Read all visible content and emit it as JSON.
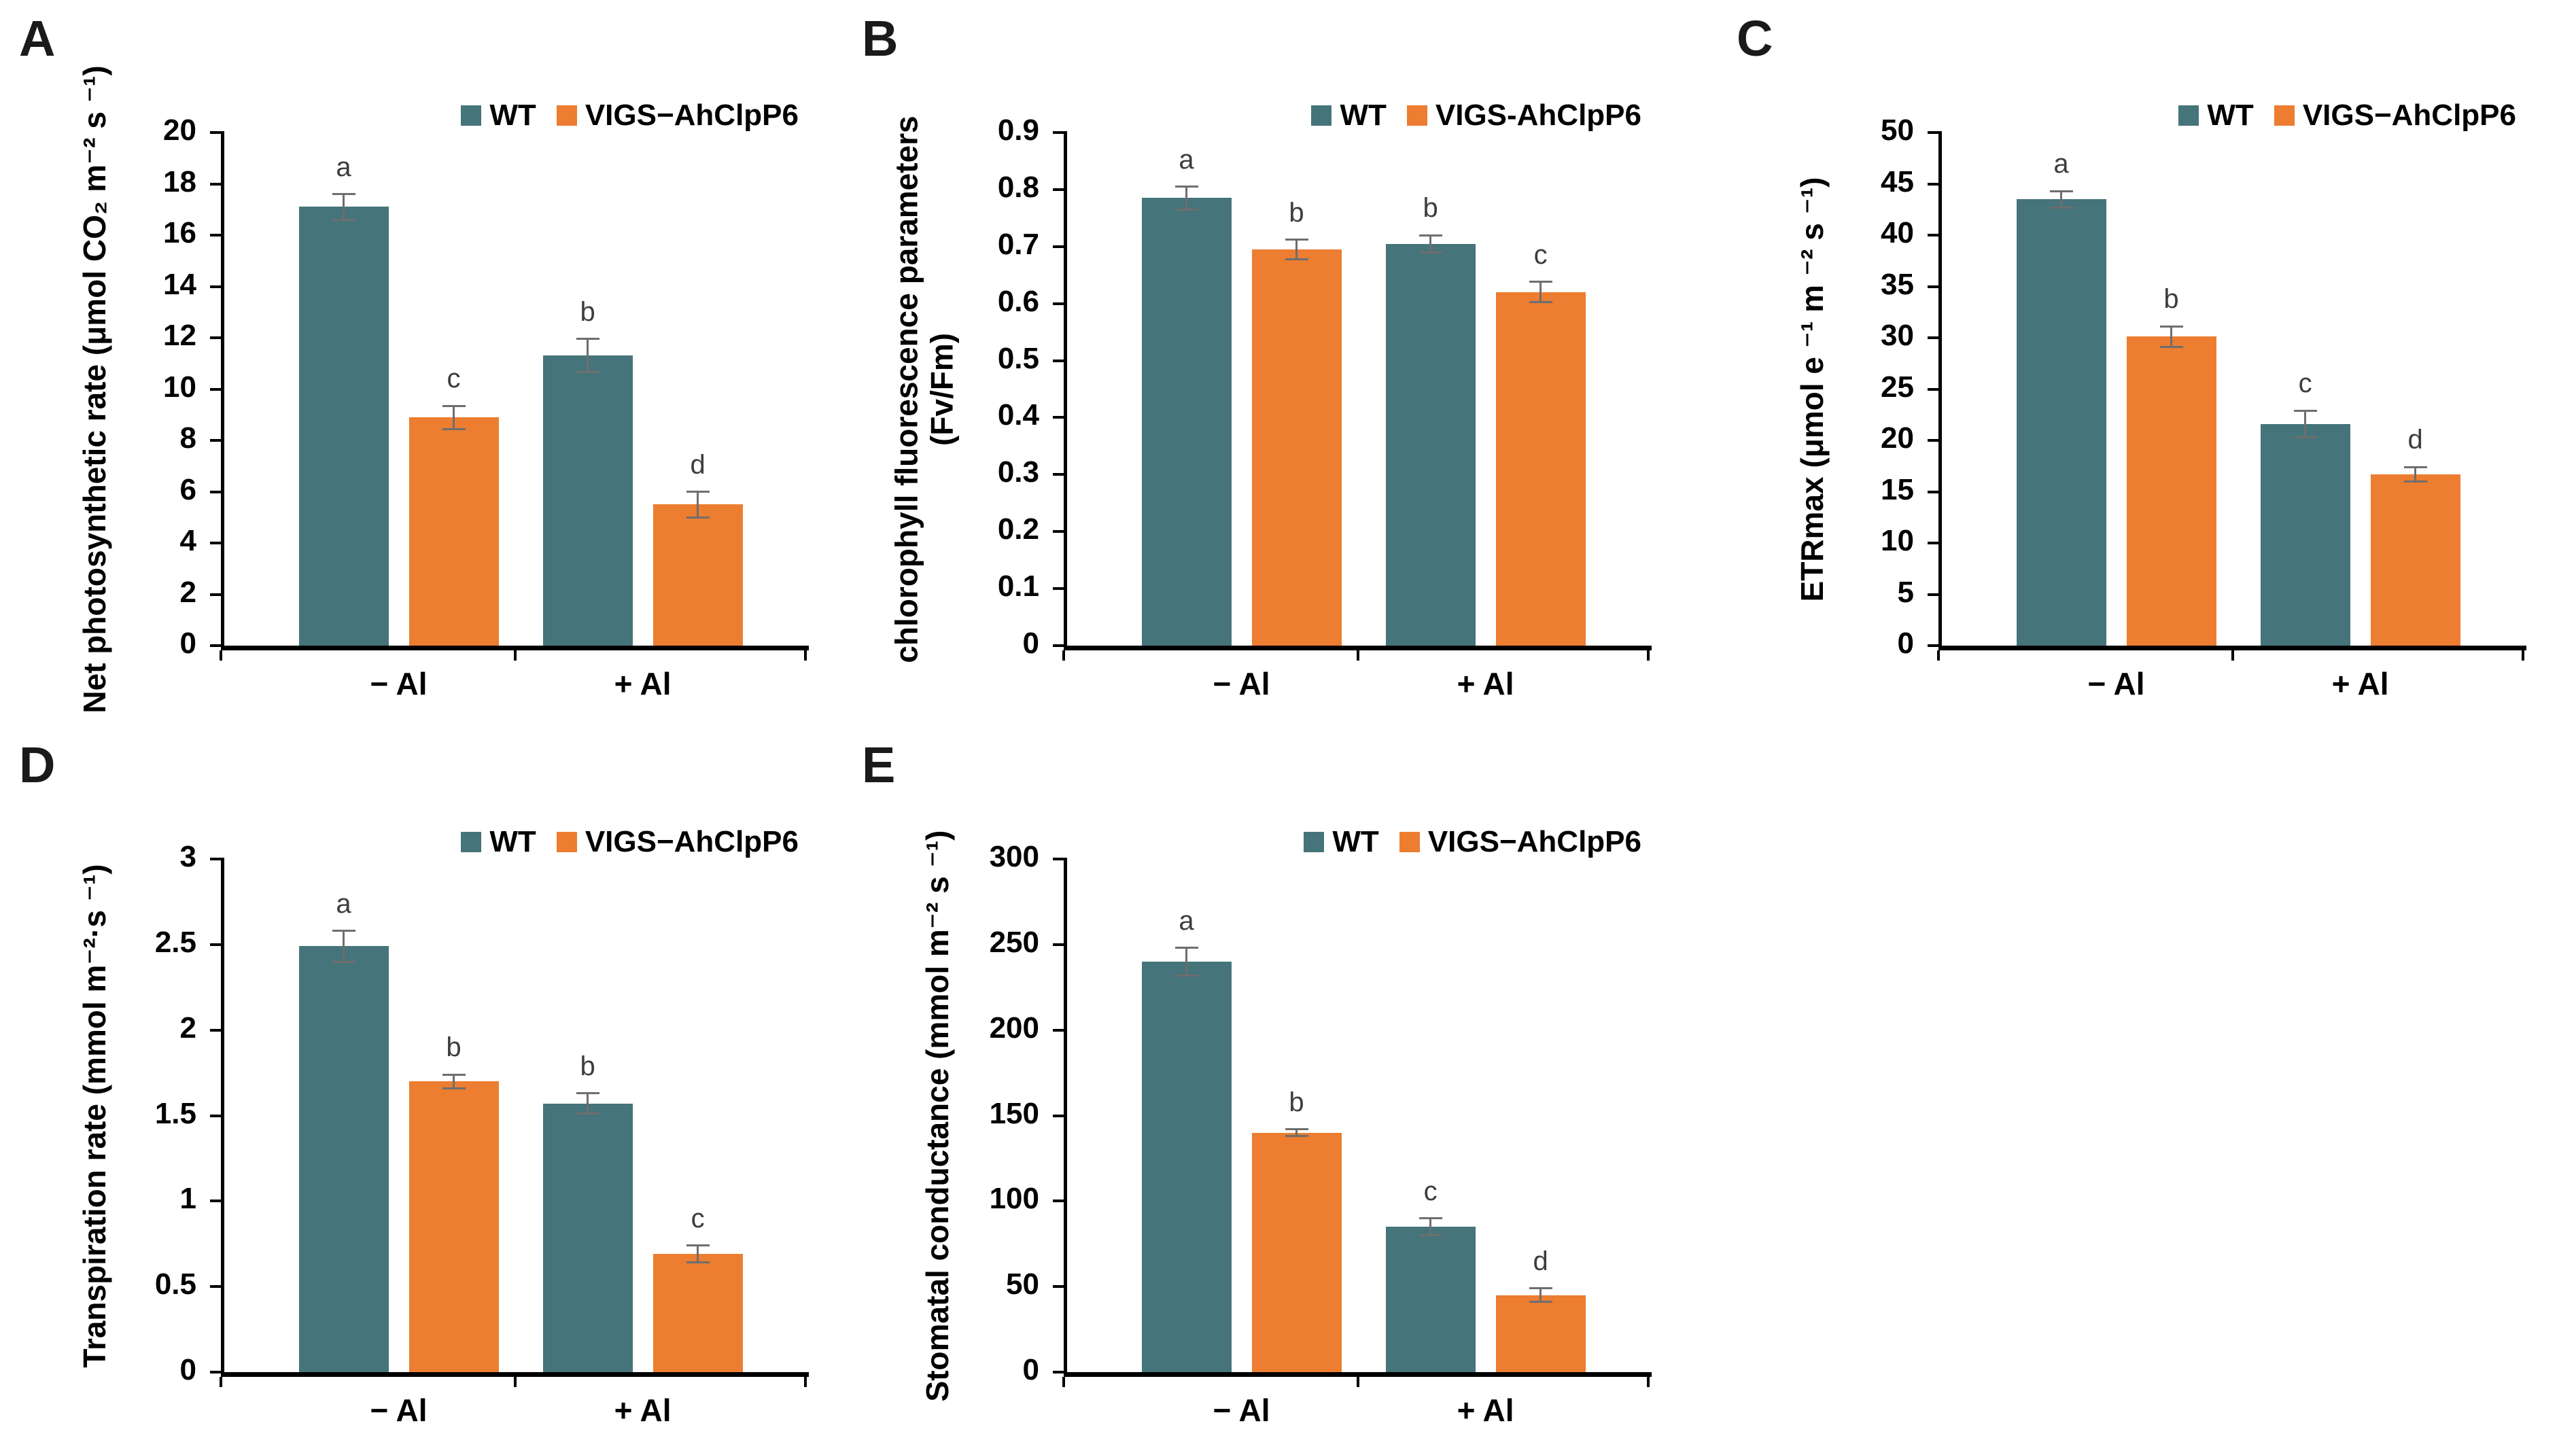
{
  "figure": {
    "background": "#ffffff",
    "series_colors": {
      "wt": "#45747A",
      "vigs": "#EC7D31"
    },
    "error_bar_color": "#6e6e6e",
    "axis_color": "#000000"
  },
  "chart_data": [
    {
      "panel_label": "A",
      "type": "bar",
      "title": "",
      "ylabel": "Net photosynthetic rate (μmol CO₂ m⁻² s ⁻¹)",
      "ylabel_line2": "",
      "xlabel": "",
      "categories": [
        "− Al",
        "+ Al"
      ],
      "legend": [
        "WT",
        "VIGS−AhClpP6"
      ],
      "legend_position": "top-right",
      "grid": false,
      "ylim": [
        0,
        20
      ],
      "yticks": [
        "0",
        "2",
        "4",
        "6",
        "8",
        "10",
        "12",
        "14",
        "16",
        "18",
        "20"
      ],
      "series": [
        {
          "name": "WT",
          "values": [
            17.1,
            11.3
          ],
          "errors": [
            0.5,
            0.65
          ],
          "letters": [
            "a",
            "b"
          ]
        },
        {
          "name": "VIGS-AhClpP6",
          "values": [
            8.9,
            5.5
          ],
          "errors": [
            0.45,
            0.5
          ],
          "letters": [
            "c",
            "d"
          ]
        }
      ]
    },
    {
      "panel_label": "B",
      "type": "bar",
      "title": "",
      "ylabel": "chlorophyll fluorescence parameters",
      "ylabel_line2": "(Fv/Fm)",
      "xlabel": "",
      "categories": [
        "− Al",
        "+ Al"
      ],
      "legend": [
        "WT",
        "VIGS-AhClpP6"
      ],
      "legend_position": "top-right",
      "grid": false,
      "ylim": [
        0,
        0.9
      ],
      "yticks": [
        "0",
        "0.1",
        "0.2",
        "0.3",
        "0.4",
        "0.5",
        "0.6",
        "0.7",
        "0.8",
        "0.9"
      ],
      "series": [
        {
          "name": "WT",
          "values": [
            0.785,
            0.705
          ],
          "errors": [
            0.02,
            0.015
          ],
          "letters": [
            "a",
            "b"
          ]
        },
        {
          "name": "VIGS-AhClpP6",
          "values": [
            0.695,
            0.62
          ],
          "errors": [
            0.017,
            0.018
          ],
          "letters": [
            "b",
            "c"
          ]
        }
      ]
    },
    {
      "panel_label": "C",
      "type": "bar",
      "title": "",
      "ylabel": "ETRmax (μmol e ⁻¹ m ⁻² s ⁻¹)",
      "ylabel_line2": "",
      "xlabel": "",
      "categories": [
        "− Al",
        "+ Al"
      ],
      "legend": [
        "WT",
        "VIGS−AhClpP6"
      ],
      "legend_position": "top-right",
      "grid": false,
      "ylim": [
        0,
        50
      ],
      "yticks": [
        "0",
        "5",
        "10",
        "15",
        "20",
        "25",
        "30",
        "35",
        "40",
        "45",
        "50"
      ],
      "series": [
        {
          "name": "WT",
          "values": [
            43.5,
            21.6
          ],
          "errors": [
            0.8,
            1.3
          ],
          "letters": [
            "a",
            "c"
          ]
        },
        {
          "name": "VIGS-AhClpP6",
          "values": [
            30.1,
            16.7
          ],
          "errors": [
            1.0,
            0.7
          ],
          "letters": [
            "b",
            "d"
          ]
        }
      ]
    },
    {
      "panel_label": "D",
      "type": "bar",
      "title": "",
      "ylabel": "Transpiration rate (mmol m⁻²·s ⁻¹)",
      "ylabel_line2": "",
      "xlabel": "",
      "categories": [
        "− Al",
        "+ Al"
      ],
      "legend": [
        "WT",
        "VIGS−AhClpP6"
      ],
      "legend_position": "top-right",
      "grid": false,
      "ylim": [
        0,
        3
      ],
      "yticks": [
        "0",
        "0.5",
        "1",
        "1.5",
        "2",
        "2.5",
        "3"
      ],
      "series": [
        {
          "name": "WT",
          "values": [
            2.49,
            1.57
          ],
          "errors": [
            0.09,
            0.06
          ],
          "letters": [
            "a",
            "b"
          ]
        },
        {
          "name": "VIGS-AhClpP6",
          "values": [
            1.7,
            0.69
          ],
          "errors": [
            0.04,
            0.05
          ],
          "letters": [
            "b",
            "c"
          ]
        }
      ]
    },
    {
      "panel_label": "E",
      "type": "bar",
      "title": "",
      "ylabel": "Stomatal conductance (mmol m⁻² s ⁻¹)",
      "ylabel_line2": "",
      "xlabel": "",
      "categories": [
        "− Al",
        "+ Al"
      ],
      "legend": [
        "WT",
        "VIGS−AhClpP6"
      ],
      "legend_position": "top-right",
      "grid": false,
      "ylim": [
        0,
        300
      ],
      "yticks": [
        "0",
        "50",
        "100",
        "150",
        "200",
        "250",
        "300"
      ],
      "series": [
        {
          "name": "WT",
          "values": [
            240,
            85
          ],
          "errors": [
            8,
            5
          ],
          "letters": [
            "a",
            "c"
          ]
        },
        {
          "name": "VIGS-AhClpP6",
          "values": [
            140,
            45
          ],
          "errors": [
            2,
            4
          ],
          "letters": [
            "b",
            "d"
          ]
        }
      ]
    }
  ]
}
